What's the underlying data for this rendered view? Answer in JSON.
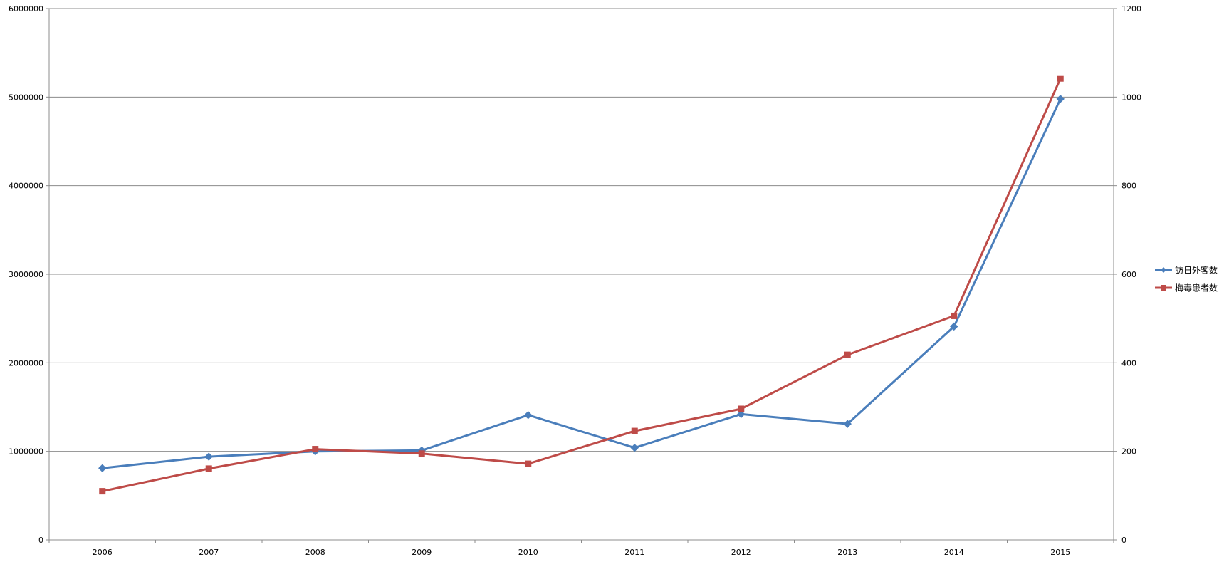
{
  "chart_data": {
    "type": "line",
    "title": "",
    "xlabel": "",
    "ylabel": "",
    "y2label": "",
    "categories": [
      "2006",
      "2007",
      "2008",
      "2009",
      "2010",
      "2011",
      "2012",
      "2013",
      "2014",
      "2015"
    ],
    "ylim": [
      0,
      6000000
    ],
    "y2lim": [
      0,
      1200
    ],
    "yticks": [
      "0",
      "1000000",
      "2000000",
      "3000000",
      "4000000",
      "5000000",
      "6000000"
    ],
    "y2ticks": [
      "0",
      "200",
      "400",
      "600",
      "800",
      "1000",
      "1200"
    ],
    "grid": true,
    "legend_position": "right",
    "series": [
      {
        "name": "訪日外客数",
        "axis": "left",
        "color": "#4a7ebb",
        "marker": "diamond",
        "values": [
          810000,
          940000,
          1000000,
          1010000,
          1410000,
          1040000,
          1420000,
          1310000,
          2410000,
          4980000
        ]
      },
      {
        "name": "梅毒患者数",
        "axis": "right",
        "color": "#be4b48",
        "marker": "square",
        "values": [
          110,
          161,
          205,
          195,
          172,
          246,
          296,
          418,
          506,
          1042
        ]
      }
    ]
  }
}
